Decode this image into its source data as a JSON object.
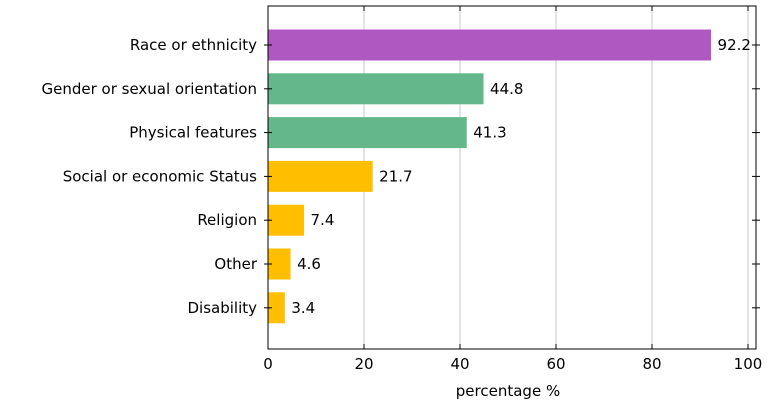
{
  "chart_data": {
    "type": "bar",
    "orientation": "horizontal",
    "categories": [
      "Race or ethnicity",
      "Gender or sexual orientation",
      "Physical features",
      "Social or economic Status",
      "Religion",
      "Other",
      "Disability"
    ],
    "values": [
      92.2,
      44.8,
      41.3,
      21.7,
      7.4,
      4.6,
      3.4
    ],
    "data_labels": [
      "92.2",
      "44.8",
      "41.3",
      "21.7",
      "7.4",
      "4.6",
      "3.4"
    ],
    "bar_colors": [
      "#b058c2",
      "#63b78a",
      "#63b78a",
      "#ffbf00",
      "#ffbf00",
      "#ffbf00",
      "#ffbf00"
    ],
    "title": "",
    "xlabel": "percentage %",
    "ylabel": "",
    "xlim": [
      0,
      100
    ],
    "xticks": [
      0,
      20,
      40,
      60,
      80,
      100
    ],
    "xtick_labels": [
      "0",
      "20",
      "40",
      "60",
      "80",
      "100"
    ],
    "grid": "vertical",
    "legend": "none"
  }
}
